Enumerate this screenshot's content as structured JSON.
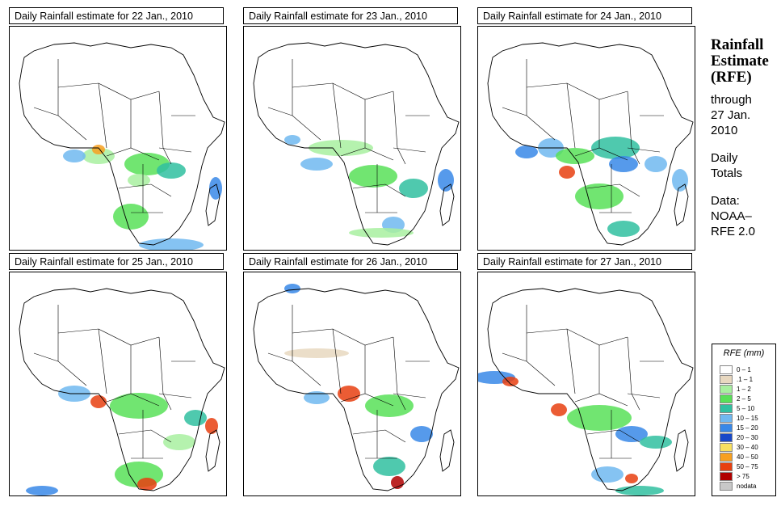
{
  "panels": [
    {
      "title": "Daily Rainfall estimate for  22 Jan., 2010"
    },
    {
      "title": "Daily Rainfall estimate for  23 Jan., 2010"
    },
    {
      "title": "Daily Rainfall estimate for  24 Jan., 2010"
    },
    {
      "title": "Daily Rainfall estimate for  25 Jan., 2010"
    },
    {
      "title": "Daily Rainfall estimate for  26 Jan., 2010"
    },
    {
      "title": "Daily Rainfall estimate for  27 Jan., 2010"
    }
  ],
  "sidebar": {
    "heading_1": "Rainfall",
    "heading_2": "Estimate",
    "heading_3": "(RFE)",
    "through_1": "through",
    "through_2": "27 Jan.",
    "through_3": "2010",
    "daily_1": "Daily",
    "daily_2": "Totals",
    "data_1": "Data:",
    "data_2": "NOAA–",
    "data_3": "RFE 2.0"
  },
  "legend": {
    "title": "RFE (mm)",
    "items": [
      {
        "label": "0 – 1",
        "color": "#ffffff"
      },
      {
        "label": ".1 – 1",
        "color": "#e8d8c0"
      },
      {
        "label": "1 – 2",
        "color": "#a8f0a0"
      },
      {
        "label": "2 – 5",
        "color": "#58e058"
      },
      {
        "label": "5 – 10",
        "color": "#30c0a0"
      },
      {
        "label": "10 – 15",
        "color": "#70b8f0"
      },
      {
        "label": "15 – 20",
        "color": "#3888e8"
      },
      {
        "label": "20 – 30",
        "color": "#1848c8"
      },
      {
        "label": "30 – 40",
        "color": "#f8e060"
      },
      {
        "label": "40 – 50",
        "color": "#f8a020"
      },
      {
        "label": "50 – 75",
        "color": "#e84010"
      },
      {
        "label": "> 75",
        "color": "#b00000"
      },
      {
        "label": "nodata",
        "color": "#c8c8c8"
      }
    ]
  },
  "colors": {
    "border": "#000000",
    "background": "#ffffff"
  }
}
